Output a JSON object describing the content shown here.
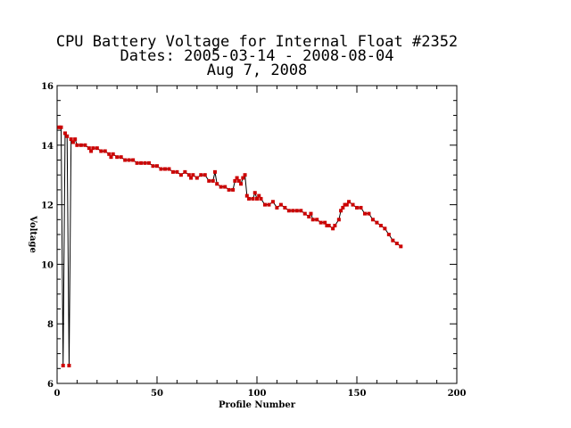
{
  "chart_data": {
    "type": "line",
    "title_lines": [
      "CPU Battery Voltage for Internal Float #2352",
      "Dates:  2005-03-14 -  2008-08-04",
      "Aug  7, 2008"
    ],
    "xlabel": "Profile Number",
    "ylabel": "Voltage",
    "xlim": [
      0,
      200
    ],
    "ylim": [
      6,
      16
    ],
    "x_ticks": [
      0,
      50,
      100,
      150,
      200
    ],
    "y_ticks": [
      6,
      8,
      10,
      12,
      14,
      16
    ],
    "grid": false,
    "series": [
      {
        "line_color": "#000000",
        "marker_color": "#cc0000",
        "points": [
          [
            1,
            14.6
          ],
          [
            2,
            14.6
          ],
          [
            3,
            6.6
          ],
          [
            4,
            14.4
          ],
          [
            5,
            14.3
          ],
          [
            6,
            6.6
          ],
          [
            7,
            14.2
          ],
          [
            8,
            14.1
          ],
          [
            9,
            14.2
          ],
          [
            10,
            14.0
          ],
          [
            12,
            14.0
          ],
          [
            14,
            14.0
          ],
          [
            16,
            13.9
          ],
          [
            17,
            13.8
          ],
          [
            18,
            13.9
          ],
          [
            20,
            13.9
          ],
          [
            22,
            13.8
          ],
          [
            24,
            13.8
          ],
          [
            26,
            13.7
          ],
          [
            27,
            13.6
          ],
          [
            28,
            13.7
          ],
          [
            30,
            13.6
          ],
          [
            32,
            13.6
          ],
          [
            34,
            13.5
          ],
          [
            36,
            13.5
          ],
          [
            38,
            13.5
          ],
          [
            40,
            13.4
          ],
          [
            42,
            13.4
          ],
          [
            44,
            13.4
          ],
          [
            46,
            13.4
          ],
          [
            48,
            13.3
          ],
          [
            50,
            13.3
          ],
          [
            52,
            13.2
          ],
          [
            54,
            13.2
          ],
          [
            56,
            13.2
          ],
          [
            58,
            13.1
          ],
          [
            60,
            13.1
          ],
          [
            62,
            13.0
          ],
          [
            64,
            13.1
          ],
          [
            66,
            13.0
          ],
          [
            67,
            12.9
          ],
          [
            68,
            13.0
          ],
          [
            70,
            12.9
          ],
          [
            72,
            13.0
          ],
          [
            74,
            13.0
          ],
          [
            76,
            12.8
          ],
          [
            78,
            12.8
          ],
          [
            79,
            13.1
          ],
          [
            80,
            12.7
          ],
          [
            82,
            12.6
          ],
          [
            84,
            12.6
          ],
          [
            86,
            12.5
          ],
          [
            88,
            12.5
          ],
          [
            89,
            12.8
          ],
          [
            90,
            12.9
          ],
          [
            91,
            12.8
          ],
          [
            92,
            12.7
          ],
          [
            93,
            12.9
          ],
          [
            94,
            13.0
          ],
          [
            95,
            12.3
          ],
          [
            96,
            12.2
          ],
          [
            98,
            12.2
          ],
          [
            99,
            12.4
          ],
          [
            100,
            12.2
          ],
          [
            101,
            12.3
          ],
          [
            102,
            12.2
          ],
          [
            104,
            12.0
          ],
          [
            106,
            12.0
          ],
          [
            108,
            12.1
          ],
          [
            110,
            11.9
          ],
          [
            112,
            12.0
          ],
          [
            114,
            11.9
          ],
          [
            116,
            11.8
          ],
          [
            118,
            11.8
          ],
          [
            120,
            11.8
          ],
          [
            122,
            11.8
          ],
          [
            124,
            11.7
          ],
          [
            126,
            11.6
          ],
          [
            127,
            11.7
          ],
          [
            128,
            11.5
          ],
          [
            130,
            11.5
          ],
          [
            132,
            11.4
          ],
          [
            134,
            11.4
          ],
          [
            135,
            11.3
          ],
          [
            136,
            11.3
          ],
          [
            138,
            11.2
          ],
          [
            139,
            11.3
          ],
          [
            141,
            11.5
          ],
          [
            142,
            11.8
          ],
          [
            143,
            11.9
          ],
          [
            144,
            12.0
          ],
          [
            145,
            12.0
          ],
          [
            146,
            12.1
          ],
          [
            148,
            12.0
          ],
          [
            150,
            11.9
          ],
          [
            152,
            11.9
          ],
          [
            154,
            11.7
          ],
          [
            156,
            11.7
          ],
          [
            158,
            11.5
          ],
          [
            160,
            11.4
          ],
          [
            162,
            11.3
          ],
          [
            164,
            11.2
          ],
          [
            166,
            11.0
          ],
          [
            168,
            10.8
          ],
          [
            170,
            10.7
          ],
          [
            172,
            10.6
          ]
        ]
      }
    ]
  }
}
